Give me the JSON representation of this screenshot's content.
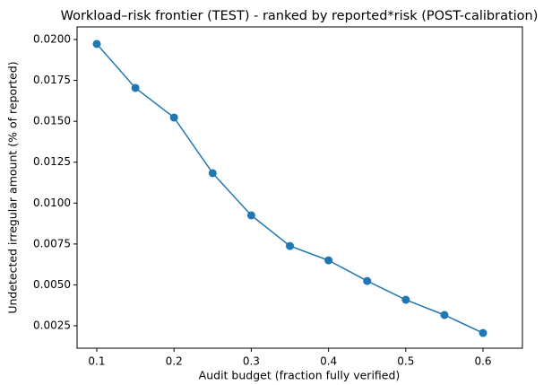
{
  "chart_data": {
    "type": "line",
    "title": "Workload–risk frontier (TEST) - ranked by reported*risk (POST-calibration)",
    "x_label": "Audit budget (fraction fully verified)",
    "y_label": "Undetected irregular amount (% of reported)",
    "x": [
      0.1,
      0.15,
      0.2,
      0.25,
      0.3,
      0.35,
      0.4,
      0.45,
      0.5,
      0.55,
      0.6
    ],
    "series": [
      {
        "color": "#1f77b4",
        "values": [
          0.01973,
          0.01704,
          0.01523,
          0.01183,
          0.00925,
          0.00738,
          0.0065,
          0.00524,
          0.00409,
          0.00316,
          0.00206
        ]
      }
    ],
    "xlim": [
      0.0745,
      0.651
    ],
    "ylim": [
      0.00113,
      0.02077
    ],
    "xticks": [
      0.1,
      0.2,
      0.3,
      0.4,
      0.5,
      0.6
    ],
    "yticks": [
      0.0025,
      {
        "value": 0.005,
        "label": "0.0050"
      },
      0.0075,
      {
        "value": 0.01,
        "label": "0.0100"
      },
      0.0125,
      {
        "value": 0.015,
        "label": "0.0150"
      },
      0.0175,
      {
        "value": 0.02,
        "label": "0.0200"
      }
    ],
    "grid": false
  }
}
